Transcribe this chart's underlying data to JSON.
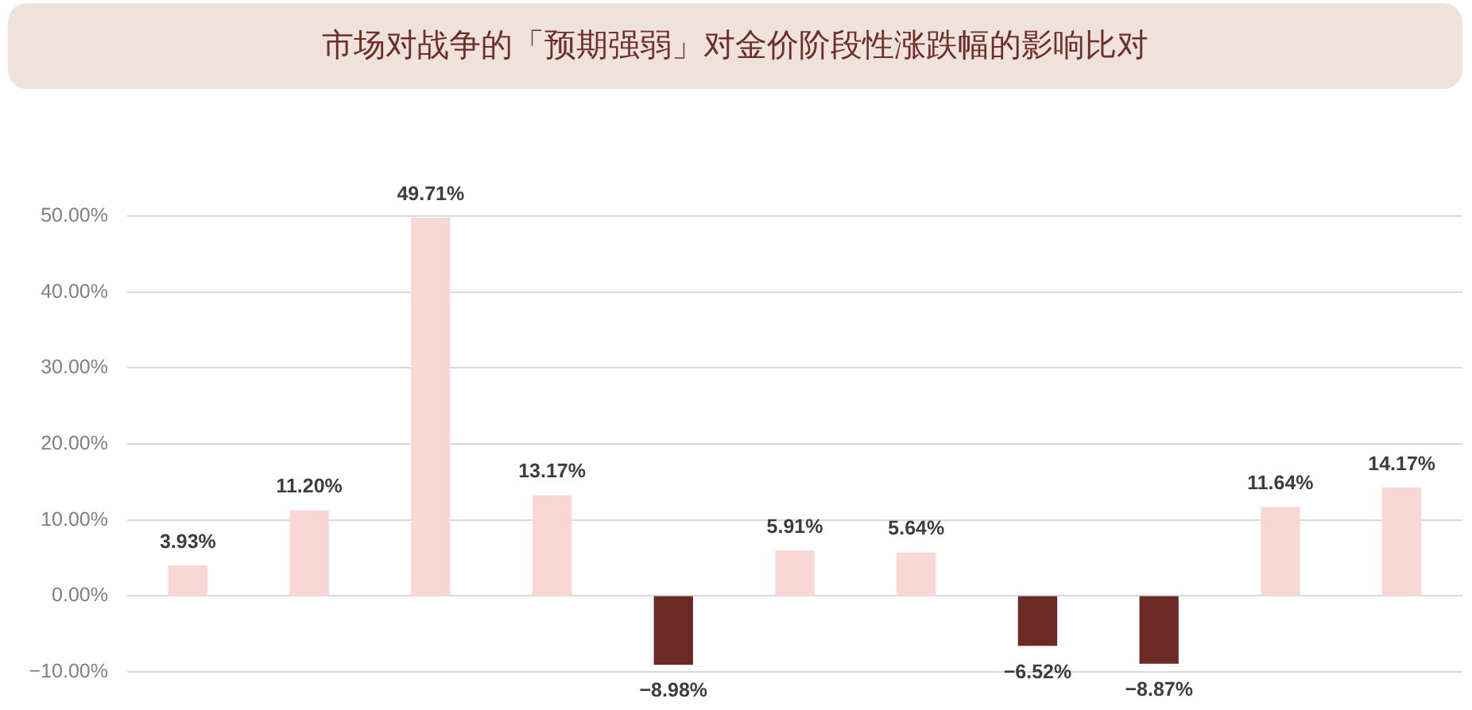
{
  "chart_data": {
    "type": "bar",
    "title": "市场对战争的「预期强弱」对金价阶段性涨跌幅的影响比对",
    "categories": [
      null,
      null,
      null,
      null,
      null,
      null,
      null,
      null,
      null,
      null,
      null
    ],
    "values": [
      3.93,
      11.2,
      49.71,
      13.17,
      -8.98,
      5.91,
      5.64,
      -6.52,
      -8.87,
      11.64,
      14.17
    ],
    "colors": [
      "#f9d7d5",
      "#f9d7d5",
      "#f9d7d5",
      "#f9d7d5",
      "#6b2a25",
      "#f9d7d5",
      "#f9d7d5",
      "#6b2a25",
      "#6b2a25",
      "#f9d7d5",
      "#f9d7d5"
    ],
    "value_labels": [
      "3.93%",
      "11.20%",
      "49.71%",
      "13.17%",
      "−8.98%",
      "5.91%",
      "5.64%",
      "−6.52%",
      "−8.87%",
      "11.64%",
      "14.17%"
    ],
    "ylim": [
      -10,
      50
    ],
    "yticks": [
      {
        "value": -10,
        "label": "−10.00%"
      },
      {
        "value": 0,
        "label": "0.00%"
      },
      {
        "value": 10,
        "label": "10.00%"
      },
      {
        "value": 20,
        "label": "20.00%"
      },
      {
        "value": 30,
        "label": "30.00%"
      },
      {
        "value": 40,
        "label": "40.00%"
      },
      {
        "value": 50,
        "label": "50.00%"
      }
    ],
    "grid": "y"
  }
}
